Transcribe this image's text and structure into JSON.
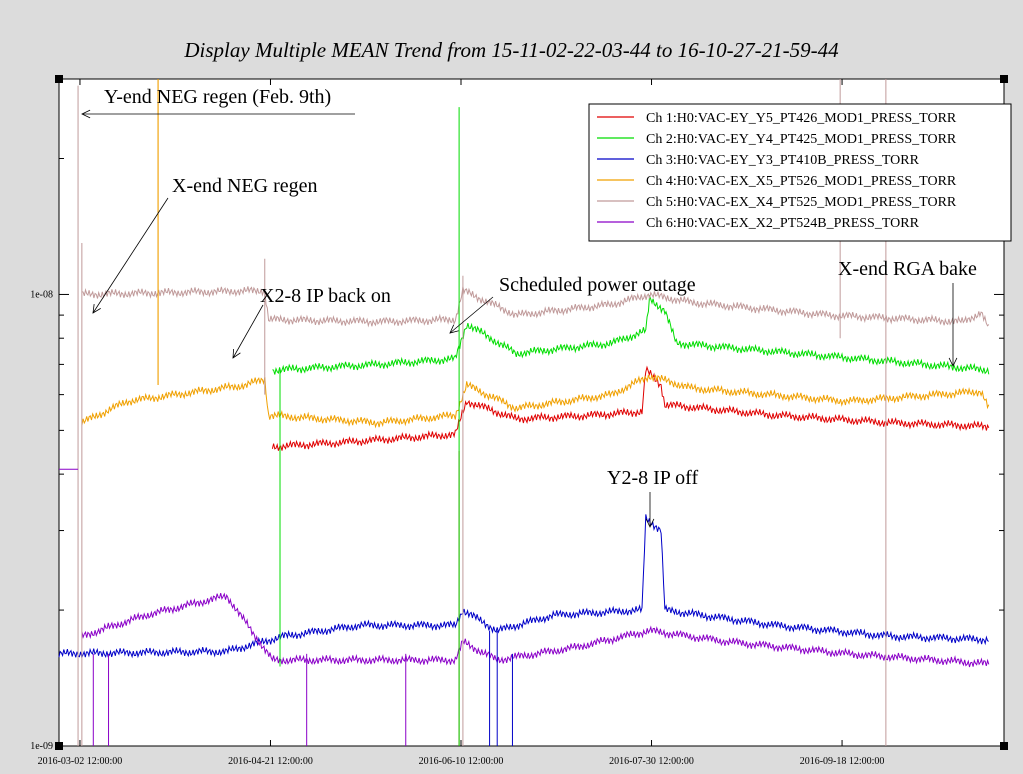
{
  "chart_data": {
    "type": "line",
    "title": "Display Multiple MEAN Trend from 15-11-02-22-03-44 to 16-10-27-21-59-44",
    "yscale": "log",
    "ylim": [
      1e-09,
      3e-08
    ],
    "xlim": [
      "2016-02-26 00:00:00",
      "2016-10-31 00:00:00"
    ],
    "xticks": [
      {
        "t": "2016-03-02 12:00:00",
        "label": "2016-03-02 12:00:00"
      },
      {
        "t": "2016-04-21 12:00:00",
        "label": "2016-04-21 12:00:00"
      },
      {
        "t": "2016-06-10 12:00:00",
        "label": "2016-06-10 12:00:00"
      },
      {
        "t": "2016-07-30 12:00:00",
        "label": "2016-07-30 12:00:00"
      },
      {
        "t": "2016-09-18 12:00:00",
        "label": "2016-09-18 12:00:00"
      }
    ],
    "yticks": [
      {
        "v": 1e-09,
        "label": "1e-09"
      },
      {
        "v": 1e-08,
        "label": "1e-08"
      }
    ],
    "legend_position": "top-right",
    "series": [
      {
        "name": "Ch 1:H0:VAC-EY_Y5_PT426_MOD1_PRESS_TORR",
        "color": "#e00000",
        "points": [
          [
            "2016-04-22",
            4.6e-09
          ],
          [
            "2016-05-10",
            4.7e-09
          ],
          [
            "2016-06-09",
            4.9e-09
          ],
          [
            "2016-06-12",
            5.8e-09
          ],
          [
            "2016-06-25",
            5.3e-09
          ],
          [
            "2016-07-15",
            5.4e-09
          ],
          [
            "2016-07-28",
            5.5e-09
          ],
          [
            "2016-07-29",
            6.8e-09
          ],
          [
            "2016-08-02",
            6.3e-09
          ],
          [
            "2016-08-03",
            5.7e-09
          ],
          [
            "2016-09-01",
            5.4e-09
          ],
          [
            "2016-10-01",
            5.2e-09
          ],
          [
            "2016-10-27",
            5.1e-09
          ]
        ]
      },
      {
        "name": "Ch 2:H0:VAC-EY_Y4_PT425_MOD1_PRESS_TORR",
        "color": "#00dd00",
        "points": [
          [
            "2016-04-22",
            6.8e-09
          ],
          [
            "2016-05-20",
            7e-09
          ],
          [
            "2016-06-09",
            7.2e-09
          ],
          [
            "2016-06-12",
            8.6e-09
          ],
          [
            "2016-06-25",
            7.4e-09
          ],
          [
            "2016-07-20",
            7.8e-09
          ],
          [
            "2016-07-29",
            8.3e-09
          ],
          [
            "2016-07-30",
            9.8e-09
          ],
          [
            "2016-08-03",
            9.2e-09
          ],
          [
            "2016-08-06",
            7.8e-09
          ],
          [
            "2016-09-15",
            7.3e-09
          ],
          [
            "2016-10-27",
            6.8e-09
          ]
        ]
      },
      {
        "name": "Ch 3:H0:VAC-EY_Y3_PT410B_PRESS_TORR",
        "color": "#0000c8",
        "points": [
          [
            "2016-02-26",
            1.6e-09
          ],
          [
            "2016-04-10",
            1.62e-09
          ],
          [
            "2016-04-25",
            1.75e-09
          ],
          [
            "2016-05-15",
            1.85e-09
          ],
          [
            "2016-06-09",
            1.85e-09
          ],
          [
            "2016-06-11",
            2e-09
          ],
          [
            "2016-06-20",
            1.8e-09
          ],
          [
            "2016-07-05",
            1.95e-09
          ],
          [
            "2016-07-28",
            2e-09
          ],
          [
            "2016-07-29",
            3.2e-09
          ],
          [
            "2016-08-02",
            3e-09
          ],
          [
            "2016-08-03",
            2e-09
          ],
          [
            "2016-09-01",
            1.85e-09
          ],
          [
            "2016-10-01",
            1.75e-09
          ],
          [
            "2016-10-27",
            1.72e-09
          ]
        ]
      },
      {
        "name": "Ch 4:H0:VAC-EX_X5_PT526_MOD1_PRESS_TORR",
        "color": "#f0a000",
        "points": [
          [
            "2016-03-03",
            5.2e-09
          ],
          [
            "2016-03-15",
            5.8e-09
          ],
          [
            "2016-04-15",
            6.3e-09
          ],
          [
            "2016-04-20",
            6.5e-09
          ],
          [
            "2016-04-21",
            5.4e-09
          ],
          [
            "2016-05-20",
            5.2e-09
          ],
          [
            "2016-06-09",
            5.4e-09
          ],
          [
            "2016-06-12",
            6.3e-09
          ],
          [
            "2016-06-25",
            5.6e-09
          ],
          [
            "2016-07-20",
            6e-09
          ],
          [
            "2016-07-30",
            6.6e-09
          ],
          [
            "2016-08-10",
            6.2e-09
          ],
          [
            "2016-09-20",
            5.8e-09
          ],
          [
            "2016-10-25",
            6.1e-09
          ],
          [
            "2016-10-27",
            5.6e-09
          ]
        ]
      },
      {
        "name": "Ch 5:H0:VAC-EX_X4_PT525_MOD1_PRESS_TORR",
        "color": "#c09a9a",
        "points": [
          [
            "2016-03-03",
            1e-08
          ],
          [
            "2016-04-20",
            1.02e-08
          ],
          [
            "2016-04-21",
            8.8e-09
          ],
          [
            "2016-05-20",
            8.7e-09
          ],
          [
            "2016-06-09",
            8.8e-09
          ],
          [
            "2016-06-11",
            1.02e-08
          ],
          [
            "2016-06-25",
            9e-09
          ],
          [
            "2016-07-20",
            9.5e-09
          ],
          [
            "2016-07-30",
            1e-08
          ],
          [
            "2016-08-10",
            9.6e-09
          ],
          [
            "2016-09-15",
            9e-09
          ],
          [
            "2016-10-20",
            8.7e-09
          ],
          [
            "2016-10-25",
            9.1e-09
          ],
          [
            "2016-10-27",
            8.4e-09
          ]
        ]
      },
      {
        "name": "Ch 6:H0:VAC-EX_X2_PT524B_PRESS_TORR",
        "color": "#8a00c8",
        "points": [
          [
            "2016-03-03",
            1.75e-09
          ],
          [
            "2016-03-20",
            1.95e-09
          ],
          [
            "2016-04-10",
            2.15e-09
          ],
          [
            "2016-04-22",
            1.55e-09
          ],
          [
            "2016-05-15",
            1.55e-09
          ],
          [
            "2016-06-09",
            1.55e-09
          ],
          [
            "2016-06-11",
            1.7e-09
          ],
          [
            "2016-06-20",
            1.55e-09
          ],
          [
            "2016-07-10",
            1.65e-09
          ],
          [
            "2016-07-30",
            1.8e-09
          ],
          [
            "2016-08-20",
            1.7e-09
          ],
          [
            "2016-09-20",
            1.6e-09
          ],
          [
            "2016-10-27",
            1.52e-09
          ]
        ]
      }
    ],
    "annotations": [
      {
        "text": "Y-end NEG regen (Feb. 9th)"
      },
      {
        "text": "X-end NEG regen"
      },
      {
        "text": "X2-8 IP back on"
      },
      {
        "text": "Scheduled power outage"
      },
      {
        "text": "Y2-8 IP off"
      },
      {
        "text": "X-end RGA bake"
      }
    ]
  }
}
